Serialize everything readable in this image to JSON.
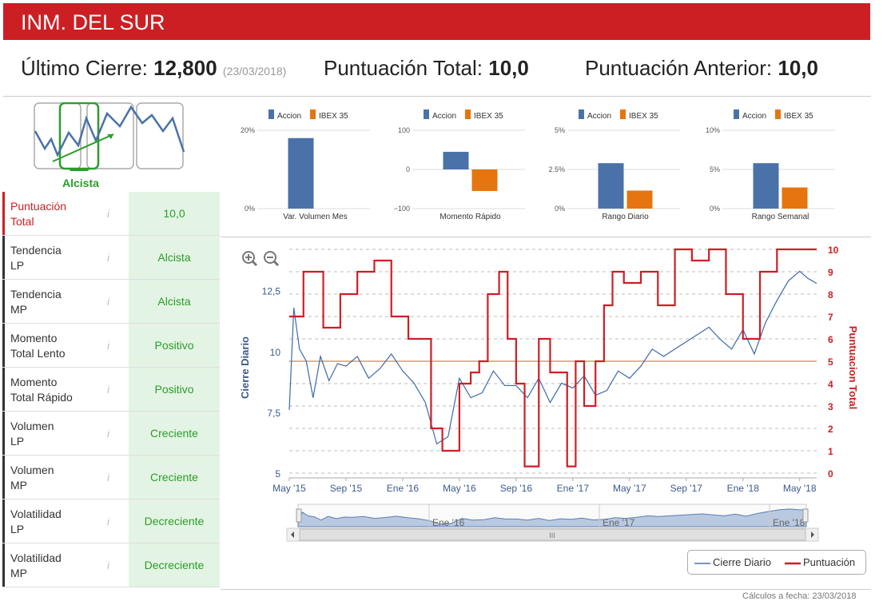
{
  "header": {
    "title": "INM. DEL SUR"
  },
  "summary": {
    "close_label": "Último Cierre:",
    "close_value": "12,800",
    "close_date": "(23/03/2018)",
    "score_label": "Puntuación Total:",
    "score_value": "10,0",
    "prev_label": "Puntuación Anterior:",
    "prev_value": "10,0"
  },
  "trend": {
    "label": "Alcista"
  },
  "indicators": [
    {
      "label1": "Puntuación",
      "label2": "Total",
      "value": "10,0"
    },
    {
      "label1": "Tendencia",
      "label2": "LP",
      "value": "Alcista"
    },
    {
      "label1": "Tendencia",
      "label2": "MP",
      "value": "Alcista"
    },
    {
      "label1": "Momento",
      "label2": "Total Lento",
      "value": "Positivo"
    },
    {
      "label1": "Momento",
      "label2": "Total Rápido",
      "value": "Positivo"
    },
    {
      "label1": "Volumen",
      "label2": "LP",
      "value": "Creciente"
    },
    {
      "label1": "Volumen",
      "label2": "MP",
      "value": "Creciente"
    },
    {
      "label1": "Volatilidad",
      "label2": "LP",
      "value": "Decreciente"
    },
    {
      "label1": "Volatilidad",
      "label2": "MP",
      "value": "Decreciente"
    }
  ],
  "colors": {
    "accent": "#cc1f24",
    "accion": "#4a72a8",
    "ibex": "#e6750f",
    "green": "#2a9d2a",
    "midline": "#f0b080"
  },
  "chart_data": [
    {
      "type": "bar",
      "title": "Var. Volumen Mes",
      "series": [
        {
          "name": "Accion",
          "values": [
            18
          ]
        },
        {
          "name": "IBEX 35",
          "values": [
            0
          ]
        }
      ],
      "ylim": [
        0,
        20
      ],
      "ticks": [
        "20%",
        "0%"
      ],
      "tick_values": [
        20,
        0
      ]
    },
    {
      "type": "bar",
      "title": "Momento Rápido",
      "series": [
        {
          "name": "Accion",
          "values": [
            45
          ]
        },
        {
          "name": "IBEX 35",
          "values": [
            -55
          ]
        }
      ],
      "ylim": [
        -100,
        100
      ],
      "ticks": [
        "100",
        "0",
        "−100"
      ],
      "tick_values": [
        100,
        0,
        -100
      ]
    },
    {
      "type": "bar",
      "title": "Rango Diario",
      "series": [
        {
          "name": "Accion",
          "values": [
            2.9
          ]
        },
        {
          "name": "IBEX 35",
          "values": [
            1.15
          ]
        }
      ],
      "ylim": [
        0,
        5
      ],
      "ticks": [
        "5%",
        "2.5%",
        "0%"
      ],
      "tick_values": [
        5,
        2.5,
        0
      ]
    },
    {
      "type": "bar",
      "title": "Rango Semanal",
      "series": [
        {
          "name": "Accion",
          "values": [
            5.8
          ]
        },
        {
          "name": "IBEX 35",
          "values": [
            2.7
          ]
        }
      ],
      "ylim": [
        0,
        10
      ],
      "ticks": [
        "10%",
        "5%",
        "0%"
      ],
      "tick_values": [
        10,
        5,
        0
      ]
    },
    {
      "type": "line",
      "xlabels": [
        "May '15",
        "Sep '15",
        "Ene '16",
        "May '16",
        "Sep '16",
        "Ene '17",
        "May '17",
        "Sep '17",
        "Ene '18",
        "May '18"
      ],
      "x_range": [
        0,
        9.3
      ],
      "ylabel_left": "Cierre Diario",
      "ylabel_right": "Puntuacion Total",
      "left_ticks": [
        "12,5",
        "10",
        "7,5",
        "5"
      ],
      "left_tick_values": [
        12.5,
        10,
        7.5,
        5
      ],
      "left_ylim": [
        5,
        14.2
      ],
      "right_ticks": [
        "10",
        "9",
        "8",
        "7",
        "6",
        "5",
        "4",
        "3",
        "2",
        "1",
        "0"
      ],
      "right_ylim": [
        0,
        10
      ],
      "reference_line": 5,
      "series": [
        {
          "name": "Cierre Diario",
          "x": [
            0,
            0.08,
            0.18,
            0.3,
            0.42,
            0.55,
            0.7,
            0.85,
            1.0,
            1.2,
            1.4,
            1.6,
            1.8,
            2.0,
            2.2,
            2.4,
            2.6,
            2.8,
            3.0,
            3.2,
            3.4,
            3.6,
            3.8,
            4.0,
            4.2,
            4.4,
            4.6,
            4.8,
            5.0,
            5.2,
            5.4,
            5.6,
            5.8,
            6.0,
            6.2,
            6.4,
            6.6,
            6.8,
            7.0,
            7.2,
            7.4,
            7.6,
            7.8,
            8.0,
            8.2,
            8.4,
            8.6,
            8.8,
            9.0,
            9.15,
            9.3
          ],
          "values": [
            7.6,
            11.8,
            10.1,
            9.6,
            8.1,
            9.8,
            8.8,
            9.5,
            9.4,
            9.8,
            8.9,
            9.3,
            9.9,
            9.2,
            8.7,
            7.9,
            6.2,
            6.5,
            8.9,
            8.1,
            8.3,
            9.2,
            8.6,
            8.6,
            8.1,
            8.9,
            7.9,
            8.7,
            8.5,
            9.0,
            8.2,
            8.4,
            9.2,
            8.9,
            9.4,
            10.1,
            9.8,
            10.1,
            10.4,
            10.7,
            11.0,
            10.5,
            10.1,
            10.9,
            9.9,
            11.2,
            12.1,
            12.9,
            13.3,
            13.0,
            12.8
          ]
        },
        {
          "name": "Puntuación",
          "x": [
            0,
            0.25,
            0.6,
            0.9,
            1.2,
            1.5,
            1.8,
            2.1,
            2.5,
            2.7,
            3.0,
            3.2,
            3.35,
            3.5,
            3.7,
            3.85,
            4.0,
            4.15,
            4.4,
            4.6,
            4.9,
            5.05,
            5.2,
            5.4,
            5.55,
            5.7,
            5.9,
            6.2,
            6.5,
            6.8,
            7.1,
            7.4,
            7.7,
            8.0,
            8.3,
            8.6,
            8.9,
            9.3
          ],
          "values": [
            7,
            9,
            6.5,
            8,
            9,
            9.5,
            7,
            6,
            2,
            1,
            4,
            4.5,
            5,
            8,
            9,
            6,
            4,
            0.3,
            6,
            4.5,
            0.3,
            5,
            3,
            5,
            7.5,
            9,
            8.5,
            9,
            7.5,
            10,
            9.5,
            10,
            8,
            6,
            9,
            10,
            10,
            10
          ]
        }
      ]
    }
  ],
  "legend": {
    "series1": "Cierre Diario",
    "series2": "Puntuación"
  },
  "navigator": {
    "labels": [
      "Ene '16",
      "Ene '17",
      "Ene '18"
    ],
    "center": "III"
  },
  "footer": "Cálculos a fecha: 23/03/2018"
}
